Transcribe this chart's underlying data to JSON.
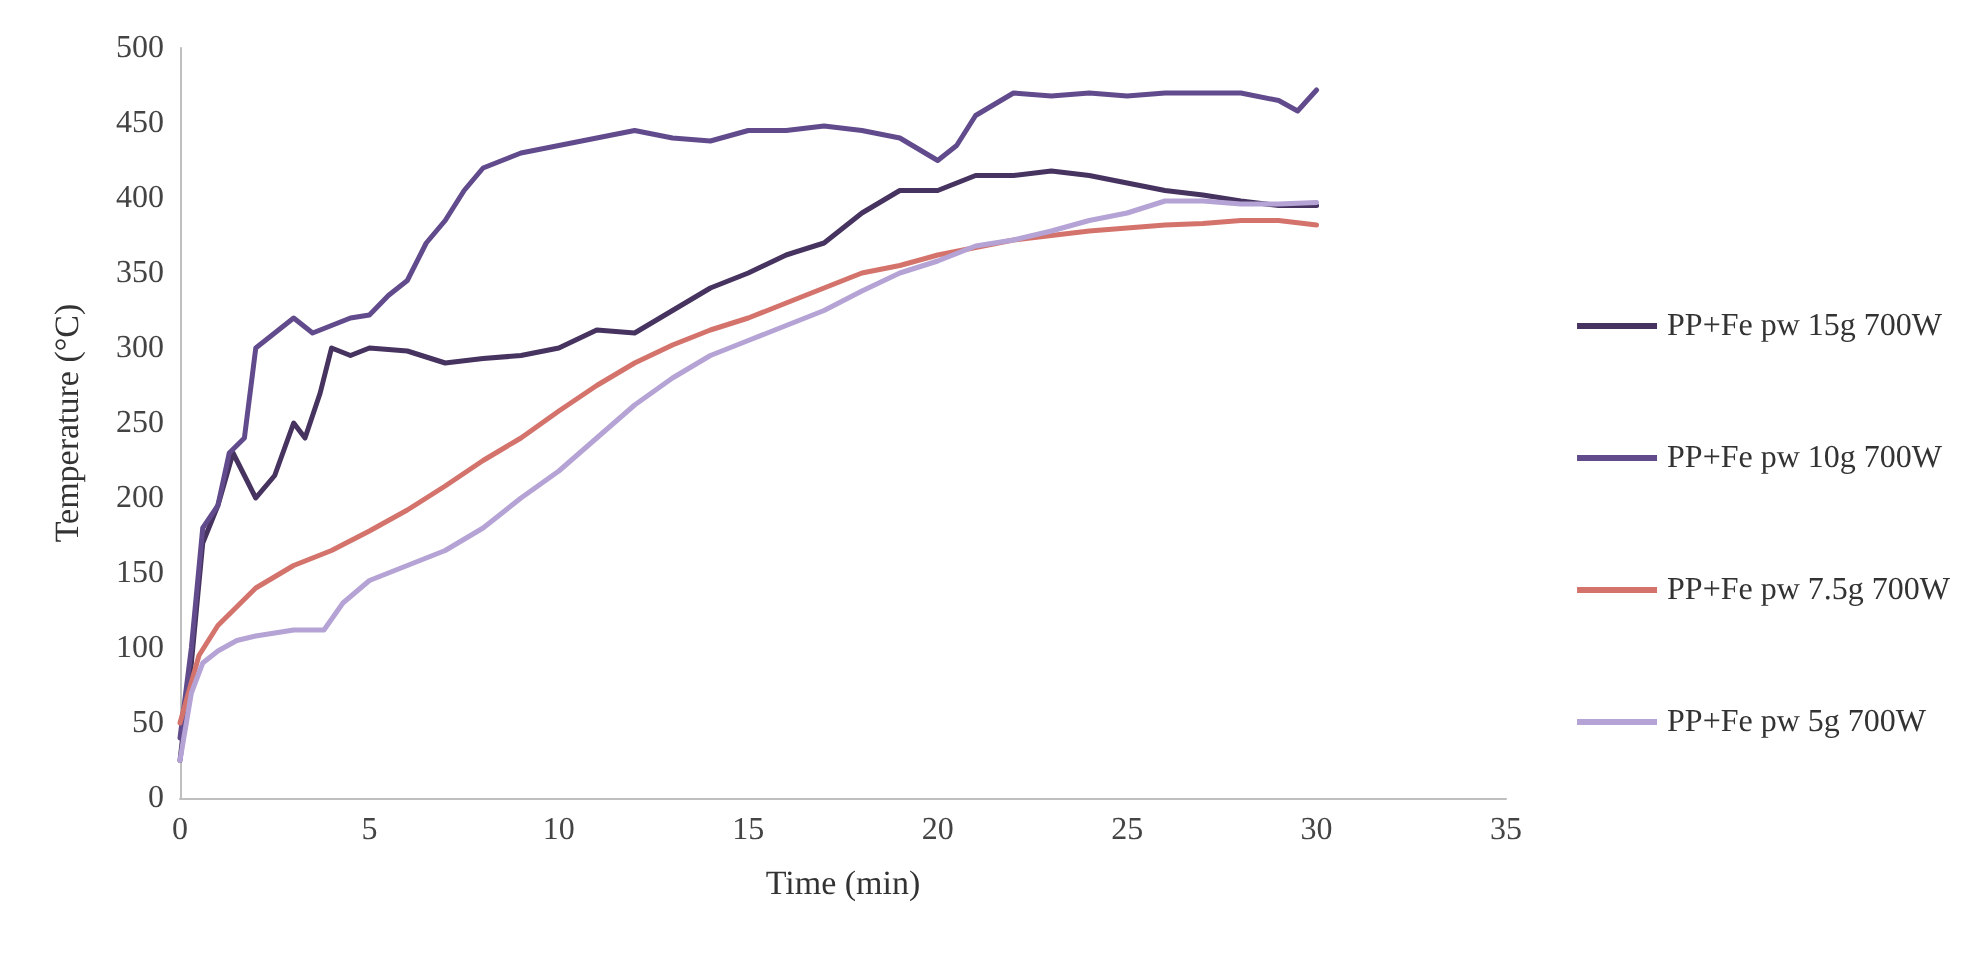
{
  "chart_data": {
    "type": "line",
    "xlabel": "Time (min)",
    "ylabel": "Temperature (°C)",
    "xlim": [
      0,
      35
    ],
    "xticks": [
      0,
      5,
      10,
      15,
      20,
      25,
      30,
      35
    ],
    "ylim": [
      0,
      500
    ],
    "yticks": [
      0,
      50,
      100,
      150,
      200,
      250,
      300,
      350,
      400,
      450,
      500
    ],
    "grid": false,
    "legend": "right",
    "marker": "none",
    "line_style": "solid",
    "series": [
      {
        "name": "PP+Fe pw 15g 700W",
        "color": "#46335f",
        "x": [
          0,
          0.3,
          0.6,
          1,
          1.4,
          1.7,
          2,
          2.5,
          3,
          3.3,
          3.7,
          4,
          4.5,
          5,
          6,
          7,
          8,
          9,
          10,
          11,
          12,
          13,
          14,
          15,
          16,
          17,
          18,
          19,
          20,
          21,
          22,
          23,
          24,
          25,
          26,
          27,
          28,
          29,
          30
        ],
        "values": [
          25,
          90,
          170,
          195,
          230,
          215,
          200,
          215,
          250,
          240,
          270,
          300,
          295,
          300,
          298,
          290,
          293,
          295,
          300,
          312,
          310,
          325,
          340,
          350,
          362,
          370,
          390,
          405,
          405,
          415,
          415,
          418,
          415,
          410,
          405,
          402,
          398,
          395,
          395
        ]
      },
      {
        "name": "PP+Fe pw 10g 700W",
        "color": "#614b8c",
        "x": [
          0,
          0.3,
          0.6,
          1,
          1.3,
          1.7,
          2,
          2.5,
          3,
          3.5,
          4,
          4.5,
          5,
          5.5,
          6,
          6.5,
          7,
          7.5,
          8,
          8.5,
          9,
          10,
          11,
          12,
          13,
          14,
          15,
          16,
          17,
          18,
          19,
          20,
          20.5,
          21,
          22,
          23,
          24,
          25,
          26,
          27,
          28,
          29,
          29.5,
          30
        ],
        "values": [
          40,
          100,
          180,
          195,
          230,
          240,
          300,
          310,
          320,
          310,
          315,
          320,
          322,
          335,
          345,
          370,
          385,
          405,
          420,
          425,
          430,
          435,
          440,
          445,
          440,
          438,
          445,
          445,
          448,
          445,
          440,
          425,
          435,
          455,
          470,
          468,
          470,
          468,
          470,
          470,
          470,
          465,
          458,
          472
        ]
      },
      {
        "name": "PP+Fe pw 7.5g 700W",
        "color": "#d4736c",
        "x": [
          0,
          0.5,
          1,
          2,
          3,
          4,
          5,
          6,
          7,
          8,
          9,
          10,
          11,
          12,
          13,
          14,
          15,
          16,
          17,
          18,
          19,
          20,
          21,
          22,
          23,
          24,
          25,
          26,
          27,
          28,
          29,
          30
        ],
        "values": [
          50,
          95,
          115,
          140,
          155,
          165,
          178,
          192,
          208,
          225,
          240,
          258,
          275,
          290,
          302,
          312,
          320,
          330,
          340,
          350,
          355,
          362,
          367,
          372,
          375,
          378,
          380,
          382,
          383,
          385,
          385,
          382
        ]
      },
      {
        "name": "PP+Fe pw 5g 700W",
        "color": "#b4a3d4",
        "x": [
          0,
          0.3,
          0.6,
          1,
          1.5,
          2,
          3,
          3.8,
          4.3,
          5,
          6,
          7,
          8,
          9,
          10,
          11,
          12,
          13,
          14,
          15,
          16,
          17,
          18,
          19,
          20,
          21,
          22,
          23,
          24,
          25,
          26,
          27,
          28,
          29,
          30
        ],
        "values": [
          25,
          70,
          90,
          98,
          105,
          108,
          112,
          112,
          130,
          145,
          155,
          165,
          180,
          200,
          218,
          240,
          262,
          280,
          295,
          305,
          315,
          325,
          338,
          350,
          358,
          368,
          372,
          378,
          385,
          390,
          398,
          398,
          396,
          396,
          397
        ]
      }
    ]
  }
}
